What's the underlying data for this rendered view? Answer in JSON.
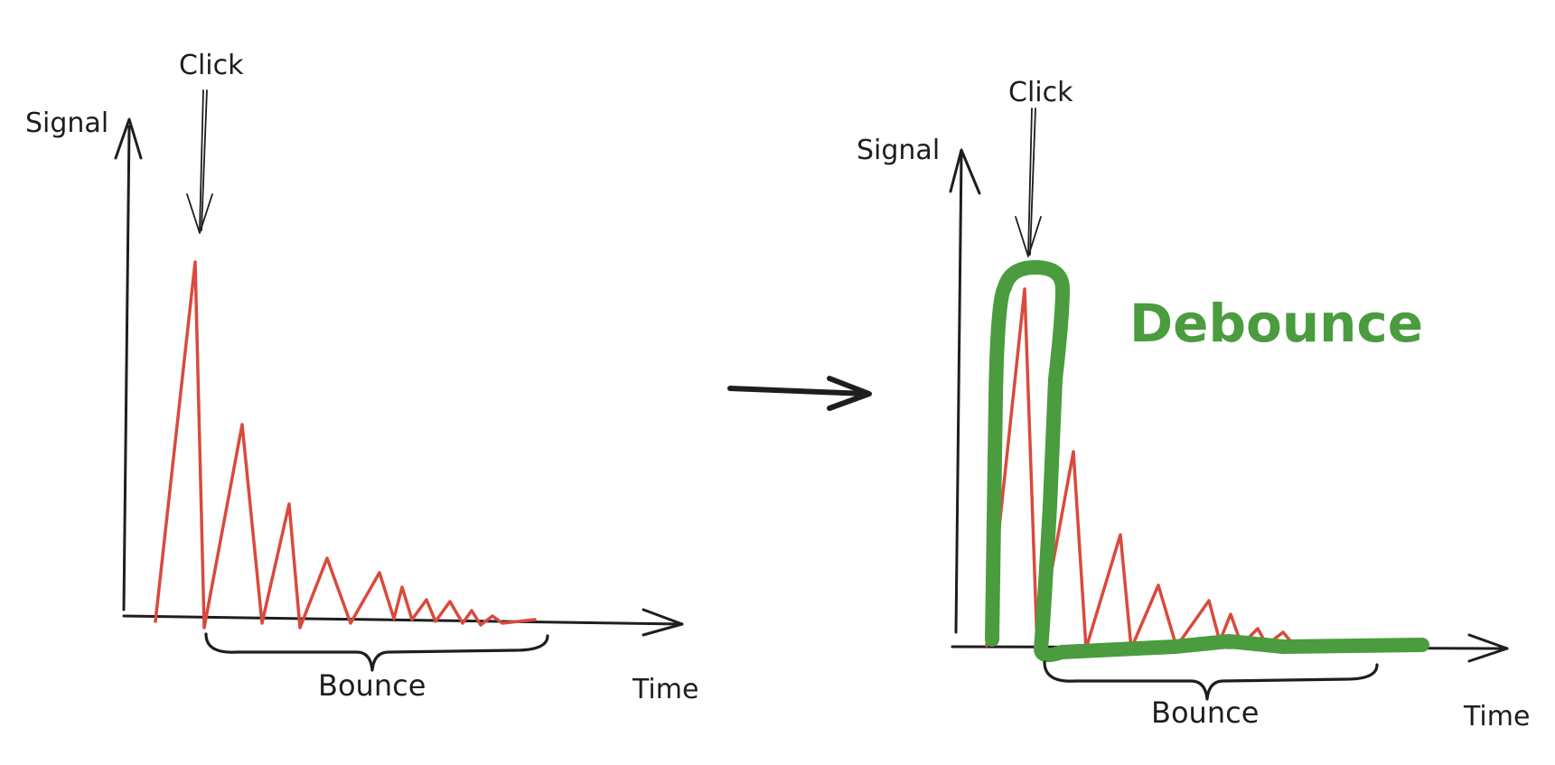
{
  "left": {
    "y_label": "Signal",
    "x_label": "Time",
    "click_label": "Click",
    "bounce_label": "Bounce"
  },
  "right": {
    "y_label": "Signal",
    "x_label": "Time",
    "click_label": "Click",
    "bounce_label": "Bounce",
    "debounce_label": "Debounce"
  },
  "colors": {
    "signal": "#d94a3c",
    "debounce": "#4a9c3e",
    "ink": "#1e1e1e"
  }
}
